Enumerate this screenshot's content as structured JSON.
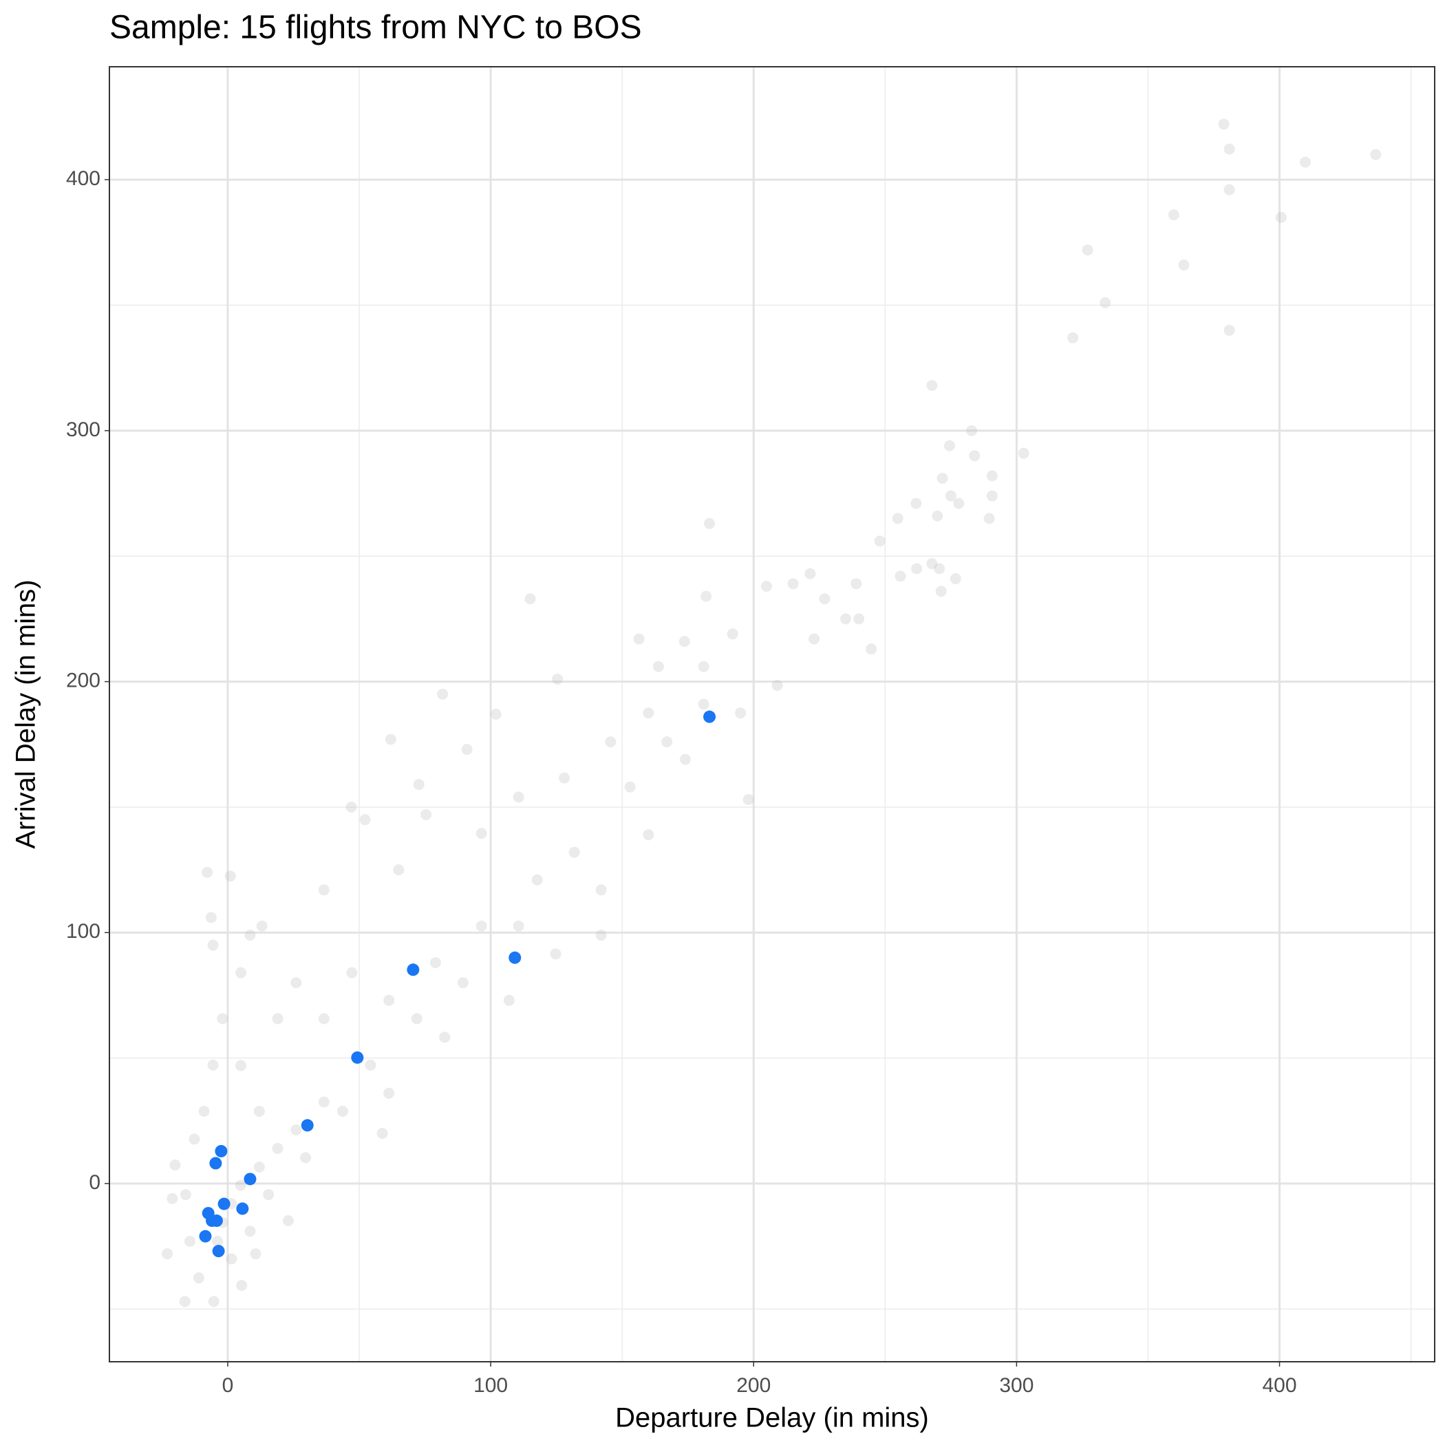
{
  "chart_data": {
    "type": "scatter",
    "title": "Sample: 15 flights from NYC to BOS",
    "xlabel": "Departure Delay (in mins)",
    "ylabel": "Arrival Delay (in mins)",
    "xlim": [
      -45,
      459
    ],
    "ylim": [
      -71,
      445
    ],
    "xticks": [
      0,
      100,
      200,
      300,
      400
    ],
    "yticks": [
      0,
      100,
      200,
      300,
      400
    ],
    "x_minor_grid": [
      50,
      150,
      250,
      350,
      450
    ],
    "y_minor_grid": [
      -50,
      50,
      150,
      250,
      350
    ],
    "grid": true,
    "series": [
      {
        "color": "#bebebe",
        "opacity": 0.3,
        "x": [
          378.8,
          380.9,
          436.6,
          409.8,
          380.9,
          359.8,
          400.6,
          327,
          363.6,
          333.7,
          380.9,
          321.4,
          267.8,
          282.9,
          302.7,
          284,
          274.5,
          290.7,
          271.8,
          290.7,
          275,
          278,
          261.8,
          269.9,
          289.6,
          254.8,
          248,
          183.2,
          267.8,
          270.6,
          262,
          276.8,
          255.8,
          271.3,
          239,
          244.7,
          240,
          235,
          221.5,
          215,
          204.9,
          181.9,
          115,
          227,
          173.7,
          192,
          163.8,
          198,
          125.4,
          102,
          81.7,
          62,
          91,
          72.7,
          47,
          52.2,
          -7.8,
          1,
          -6.3,
          13,
          58.8,
          -20,
          -21.1,
          -23,
          -16.3,
          -5.3,
          5.3,
          10.6,
          23,
          124.7,
          142,
          160,
          110.6,
          89.5,
          71.9,
          54.3,
          36.6,
          26,
          19,
          12,
          4.9,
          1.4,
          -2,
          -3.9,
          -9,
          -5.6,
          -2,
          5,
          19,
          36.6,
          26,
          47.2,
          61.3,
          79,
          96.5,
          117.7,
          131.8,
          153,
          167,
          181,
          195,
          209,
          223,
          142,
          107,
          82.5,
          61.3,
          43.7,
          29.6,
          15.5,
          8.5,
          1.4,
          -11,
          -14.4,
          -12.7,
          -16,
          5,
          12,
          -5.6,
          8.5,
          36.6,
          65,
          75.4,
          96.5,
          110.6,
          128,
          145.6,
          160,
          174,
          156.4,
          181
        ],
        "y": [
          422.1,
          412.2,
          410,
          407,
          396,
          386,
          385,
          372,
          366,
          351,
          340,
          337,
          318,
          300,
          291,
          290,
          294,
          282,
          281,
          274,
          274,
          271,
          271,
          266,
          265,
          265,
          256,
          263,
          247,
          245,
          245,
          241,
          242,
          236,
          239,
          213,
          225,
          225,
          243,
          239,
          238,
          234,
          233,
          233,
          216,
          219,
          206,
          153,
          201,
          187,
          195,
          177,
          173,
          159,
          150,
          145,
          124,
          122.5,
          106,
          102.6,
          20,
          7.4,
          -6,
          -28,
          -47,
          -47,
          -40.6,
          -28,
          -14.8,
          91.5,
          117,
          139,
          102.6,
          80,
          65.7,
          47.2,
          32.5,
          21.4,
          14,
          6.6,
          -0.7,
          -8,
          -15.5,
          -23,
          28.8,
          47.2,
          65.7,
          84,
          65.7,
          65.7,
          80,
          84,
          73,
          88,
          102.6,
          121,
          132,
          158,
          176,
          191,
          187.5,
          198.5,
          217,
          99,
          73,
          58.3,
          36,
          28.8,
          10.3,
          -4.4,
          -19,
          -30,
          -37.6,
          -23,
          17.7,
          -4.4,
          47,
          28.8,
          95,
          99,
          117,
          125,
          147,
          139.5,
          154,
          161.6,
          176,
          187.5,
          169,
          217,
          206
        ]
      },
      {
        "color": "#1a76f2",
        "opacity": 1,
        "x": [
          183.2,
          109.2,
          70.5,
          49.3,
          30.3,
          8.5,
          -2.5,
          -4.6,
          -1.4,
          5.6,
          -7.4,
          -6,
          -4.2,
          -8.5,
          -3.5
        ],
        "y": [
          186,
          90,
          85.2,
          50.2,
          23.2,
          1.8,
          12.9,
          8.1,
          -8.1,
          -10,
          -11.8,
          -14.8,
          -14.8,
          -21,
          -26.9
        ]
      }
    ]
  }
}
